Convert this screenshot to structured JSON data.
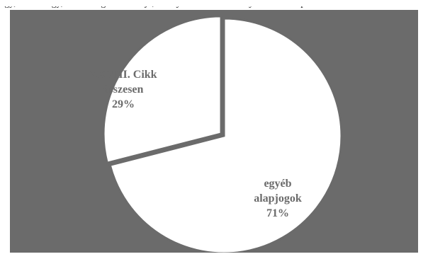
{
  "page": {
    "top_text": "egy, vallási egy, szabadságát biztosítja, amelyekre az alkotmány a 3. és a 4. pontnál is utal"
  },
  "chart_data": {
    "type": "pie",
    "title": "",
    "slices": [
      {
        "label_lines": [
          "XXVIII. Cikk",
          "összesen",
          "29%"
        ],
        "value": 29
      },
      {
        "label_lines": [
          "egyéb",
          "alapjogok",
          "71%"
        ],
        "value": 71
      }
    ],
    "colors": {
      "background": "#6b6b6b",
      "slice": "#ffffff",
      "label": "#6b6b6b"
    }
  }
}
